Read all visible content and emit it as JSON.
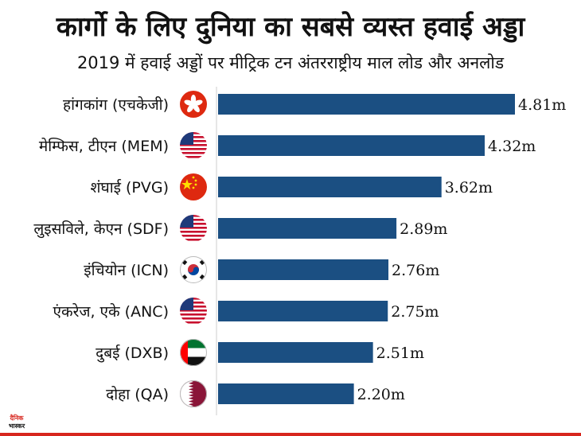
{
  "header": {
    "title": "कार्गो के लिए दुनिया का सबसे व्यस्त हवाई अड्डा",
    "subtitle": "2019 में हवाई अड्डों पर मीट्रिक टन अंतरराष्ट्रीय माल लोड और अनलोड"
  },
  "chart_data": {
    "type": "bar",
    "orientation": "horizontal",
    "categories": [
      "हांगकांग (एचकेजी)",
      "मेम्फिस, टीएन (MEM)",
      "शंघाई (PVG)",
      "लुइसविले, केएन (SDF)",
      "इंचियोन (ICN)",
      "एंकरेज, एके (ANC)",
      "दुबई (DXB)",
      "दोहा (QA)"
    ],
    "values": [
      4.81,
      4.32,
      3.62,
      2.89,
      2.76,
      2.75,
      2.51,
      2.2
    ],
    "value_labels": [
      "4.81m",
      "4.32m",
      "3.62m",
      "2.89m",
      "2.76m",
      "2.75m",
      "2.51m",
      "2.20m"
    ],
    "flags": [
      "hong-kong-flag-icon",
      "usa-flag-icon",
      "china-flag-icon",
      "usa-flag-icon",
      "south-korea-flag-icon",
      "usa-flag-icon",
      "uae-flag-icon",
      "qatar-flag-icon"
    ],
    "xlim": [
      0,
      4.81
    ],
    "bar_color": "#1b4f82",
    "grid": false,
    "legend": "none"
  },
  "logo": {
    "line1": "दैनिक",
    "line2": "भास्कर"
  },
  "colors": {
    "accent": "#d7261e"
  }
}
